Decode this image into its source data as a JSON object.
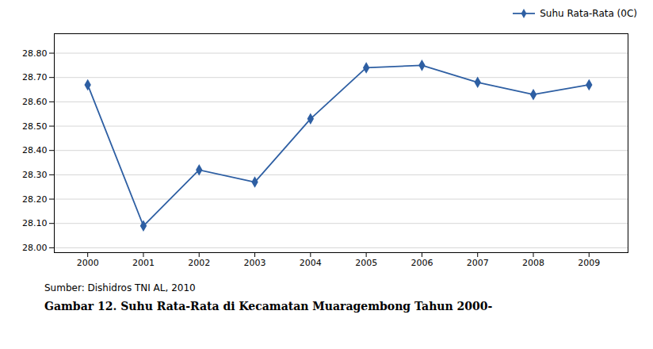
{
  "chart_data": {
    "type": "line",
    "x": [
      2000,
      2001,
      2002,
      2003,
      2004,
      2005,
      2006,
      2007,
      2008,
      2009
    ],
    "series": [
      {
        "name": "Suhu Rata-Rata (0C)",
        "color": "#2E5FA3",
        "marker": "diamond",
        "values": [
          28.67,
          28.09,
          28.32,
          28.27,
          28.53,
          28.74,
          28.75,
          28.68,
          28.63,
          28.67
        ]
      }
    ],
    "xlim": [
      1999.4,
      2009.7
    ],
    "xticks": [
      2000,
      2001,
      2002,
      2003,
      2004,
      2005,
      2006,
      2007,
      2008,
      2009
    ],
    "ylim": [
      27.98,
      28.88
    ],
    "yticks": [
      {
        "value": 28.0,
        "label": "28.00"
      },
      {
        "value": 28.1,
        "label": "28.10"
      },
      {
        "value": 28.2,
        "label": "28.20"
      },
      {
        "value": 28.3,
        "label": "28.30"
      },
      {
        "value": 28.4,
        "label": "28.40"
      },
      {
        "value": 28.5,
        "label": "28.50"
      },
      {
        "value": 28.6,
        "label": "28.60"
      },
      {
        "value": 28.7,
        "label": "28.70"
      },
      {
        "value": 28.8,
        "label": "28.80"
      }
    ],
    "grid": true,
    "legend": "upper right",
    "annotations": [
      "Sumber: Dishidros TNI AL, 2010",
      "Gambar 12. Suhu Rata-Rata di Kecamatan Muaragembong Tahun 2000-"
    ]
  }
}
